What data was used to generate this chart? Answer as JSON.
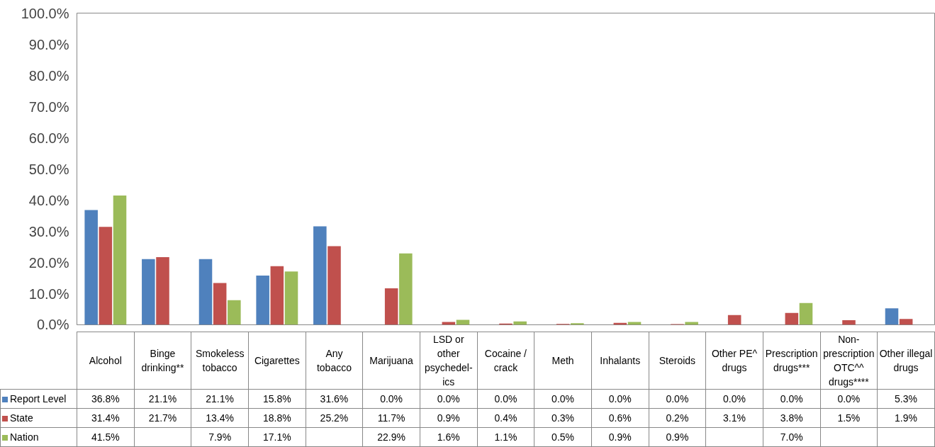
{
  "chart_data": {
    "type": "bar",
    "categories": [
      "Alcohol",
      "Binge drinking**",
      "Smokeless tobacco",
      "Cigarettes",
      "Any tobacco",
      "Marijuana",
      "LSD or other psychedel-ics",
      "Cocaine / crack",
      "Meth",
      "Inhalants",
      "Steroids",
      "Other PE^ drugs",
      "Prescription drugs***",
      "Non-prescription OTC^^ drugs****",
      "Other illegal drugs"
    ],
    "series": [
      {
        "name": "Report Level",
        "color": "#4f81bd",
        "values": [
          36.8,
          21.1,
          21.1,
          15.8,
          31.6,
          0.0,
          0.0,
          0.0,
          0.0,
          0.0,
          0.0,
          0.0,
          0.0,
          0.0,
          5.3
        ],
        "value_labels": [
          "36.8%",
          "21.1%",
          "21.1%",
          "15.8%",
          "31.6%",
          "0.0%",
          "0.0%",
          "0.0%",
          "0.0%",
          "0.0%",
          "0.0%",
          "0.0%",
          "0.0%",
          "0.0%",
          "5.3%"
        ]
      },
      {
        "name": "State",
        "color": "#c0504d",
        "values": [
          31.4,
          21.7,
          13.4,
          18.8,
          25.2,
          11.7,
          0.9,
          0.4,
          0.3,
          0.6,
          0.2,
          3.1,
          3.8,
          1.5,
          1.9
        ],
        "value_labels": [
          "31.4%",
          "21.7%",
          "13.4%",
          "18.8%",
          "25.2%",
          "11.7%",
          "0.9%",
          "0.4%",
          "0.3%",
          "0.6%",
          "0.2%",
          "3.1%",
          "3.8%",
          "1.5%",
          "1.9%"
        ]
      },
      {
        "name": "Nation",
        "color": "#9bbb59",
        "values": [
          41.5,
          null,
          7.9,
          17.1,
          null,
          22.9,
          1.6,
          1.1,
          0.5,
          0.9,
          0.9,
          null,
          7.0,
          null,
          null
        ],
        "value_labels": [
          "41.5%",
          null,
          "7.9%",
          "17.1%",
          null,
          "22.9%",
          "1.6%",
          "1.1%",
          "0.5%",
          "0.9%",
          "0.9%",
          null,
          "7.0%",
          null,
          null
        ]
      }
    ],
    "ylim": [
      0,
      100
    ],
    "yticks": [
      {
        "value": 0,
        "label": "0.0%"
      },
      {
        "value": 10,
        "label": "10.0%"
      },
      {
        "value": 20,
        "label": "20.0%"
      },
      {
        "value": 30,
        "label": "30.0%"
      },
      {
        "value": 40,
        "label": "40.0%"
      },
      {
        "value": 50,
        "label": "50.0%"
      },
      {
        "value": 60,
        "label": "60.0%"
      },
      {
        "value": 70,
        "label": "70.0%"
      },
      {
        "value": 80,
        "label": "80.0%"
      },
      {
        "value": 90,
        "label": "90.0%"
      },
      {
        "value": 100,
        "label": "100.0%"
      }
    ],
    "grid": false,
    "legend": "bottom"
  }
}
